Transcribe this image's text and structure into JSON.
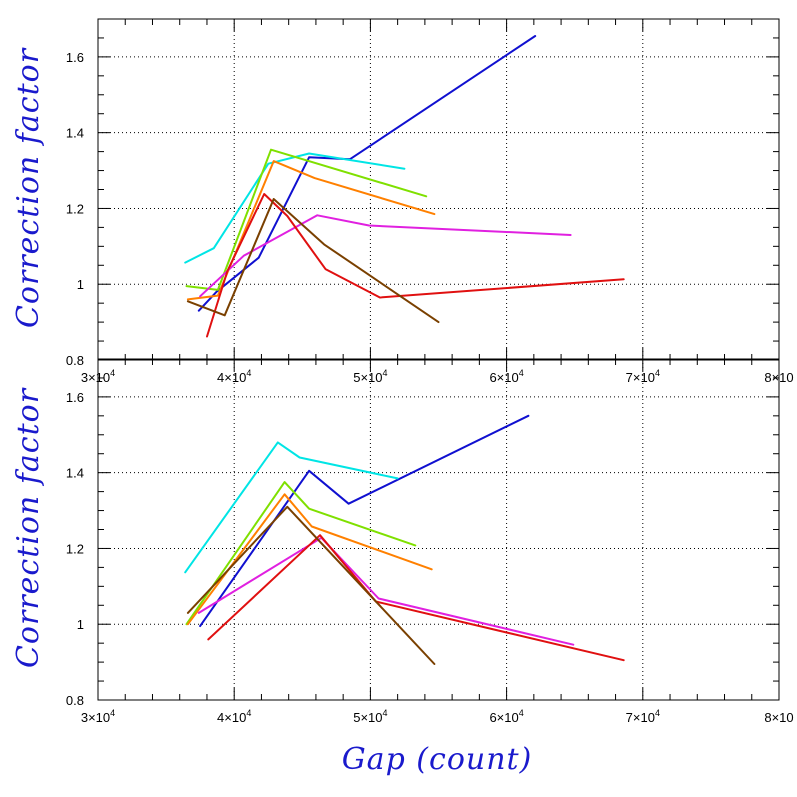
{
  "chart_data": [
    {
      "type": "line",
      "panel": "top",
      "xlabel": "",
      "ylabel": "Correction factor",
      "xlim": [
        30000,
        80000
      ],
      "ylim": [
        0.8,
        1.7
      ],
      "x_ticks": [
        30000,
        40000,
        50000,
        60000,
        70000,
        80000
      ],
      "x_tick_labels": [
        {
          "base": "3×10",
          "exp": "4"
        },
        {
          "base": "4×10",
          "exp": "4"
        },
        {
          "base": "5×10",
          "exp": "4"
        },
        {
          "base": "6×10",
          "exp": "4"
        },
        {
          "base": "7×10",
          "exp": "4"
        },
        {
          "base": "8×10",
          "exp": ""
        }
      ],
      "y_ticks": [
        0.8,
        1,
        1.2,
        1.4,
        1.6
      ],
      "y_tick_labels": [
        "0.8",
        "1",
        "1.2",
        "1.4",
        "1.6"
      ],
      "grid": true,
      "series": [
        {
          "color": "#1010d0",
          "points": [
            [
              37400,
              0.93
            ],
            [
              38700,
              0.98
            ],
            [
              41800,
              1.07
            ],
            [
              45500,
              1.335
            ],
            [
              48500,
              1.33
            ],
            [
              62100,
              1.655
            ]
          ]
        },
        {
          "color": "#00e5e5",
          "points": [
            [
              36400,
              1.057
            ],
            [
              38500,
              1.095
            ],
            [
              42500,
              1.318
            ],
            [
              45500,
              1.345
            ],
            [
              52500,
              1.305
            ]
          ]
        },
        {
          "color": "#7fe000",
          "points": [
            [
              36500,
              0.995
            ],
            [
              38800,
              0.985
            ],
            [
              42700,
              1.355
            ],
            [
              54100,
              1.232
            ]
          ]
        },
        {
          "color": "#ff8000",
          "points": [
            [
              36600,
              0.96
            ],
            [
              38800,
              0.97
            ],
            [
              42900,
              1.325
            ],
            [
              45900,
              1.28
            ],
            [
              54700,
              1.185
            ]
          ]
        },
        {
          "color": "#e020e0",
          "points": [
            [
              37500,
              0.968
            ],
            [
              40700,
              1.075
            ],
            [
              46100,
              1.182
            ],
            [
              49900,
              1.155
            ],
            [
              64700,
              1.13
            ]
          ]
        },
        {
          "color": "#e01010",
          "points": [
            [
              38000,
              0.862
            ],
            [
              39500,
              1.035
            ],
            [
              42200,
              1.238
            ],
            [
              43900,
              1.18
            ],
            [
              46700,
              1.04
            ],
            [
              50700,
              0.965
            ],
            [
              68600,
              1.013
            ]
          ]
        },
        {
          "color": "#7a4000",
          "points": [
            [
              36600,
              0.955
            ],
            [
              39300,
              0.918
            ],
            [
              42900,
              1.225
            ],
            [
              46600,
              1.105
            ],
            [
              55000,
              0.9
            ]
          ]
        }
      ]
    },
    {
      "type": "line",
      "panel": "bottom",
      "xlabel": "Gap (count)",
      "ylabel": "Correction factor",
      "xlim": [
        30000,
        80000
      ],
      "ylim": [
        0.8,
        1.7
      ],
      "x_ticks": [
        30000,
        40000,
        50000,
        60000,
        70000,
        80000
      ],
      "x_tick_labels": [
        {
          "base": "3×10",
          "exp": "4"
        },
        {
          "base": "4×10",
          "exp": "4"
        },
        {
          "base": "5×10",
          "exp": "4"
        },
        {
          "base": "6×10",
          "exp": "4"
        },
        {
          "base": "7×10",
          "exp": "4"
        },
        {
          "base": "8×10",
          "exp": ""
        }
      ],
      "y_ticks": [
        0.8,
        1,
        1.2,
        1.4,
        1.6
      ],
      "y_tick_labels": [
        "0.8",
        "1",
        "1.2",
        "1.4",
        "1.6"
      ],
      "grid": true,
      "series": [
        {
          "color": "#1010d0",
          "points": [
            [
              37500,
              0.995
            ],
            [
              45500,
              1.405
            ],
            [
              48400,
              1.318
            ],
            [
              61600,
              1.55
            ]
          ]
        },
        {
          "color": "#00e5e5",
          "points": [
            [
              36400,
              1.137
            ],
            [
              43200,
              1.48
            ],
            [
              44800,
              1.44
            ],
            [
              52000,
              1.385
            ]
          ]
        },
        {
          "color": "#7fe000",
          "points": [
            [
              36500,
              1.0
            ],
            [
              43700,
              1.375
            ],
            [
              45500,
              1.305
            ],
            [
              53300,
              1.208
            ]
          ]
        },
        {
          "color": "#ff8000",
          "points": [
            [
              36600,
              1.0
            ],
            [
              43700,
              1.343
            ],
            [
              45700,
              1.258
            ],
            [
              54500,
              1.145
            ]
          ]
        },
        {
          "color": "#e020e0",
          "points": [
            [
              37400,
              1.03
            ],
            [
              46400,
              1.228
            ],
            [
              50600,
              1.068
            ],
            [
              64900,
              0.946
            ]
          ]
        },
        {
          "color": "#e01010",
          "points": [
            [
              38100,
              0.96
            ],
            [
              46300,
              1.235
            ],
            [
              50400,
              1.06
            ],
            [
              68600,
              0.905
            ]
          ]
        },
        {
          "color": "#7a4000",
          "points": [
            [
              36600,
              1.03
            ],
            [
              43900,
              1.31
            ],
            [
              54700,
              0.895
            ]
          ]
        }
      ]
    }
  ]
}
